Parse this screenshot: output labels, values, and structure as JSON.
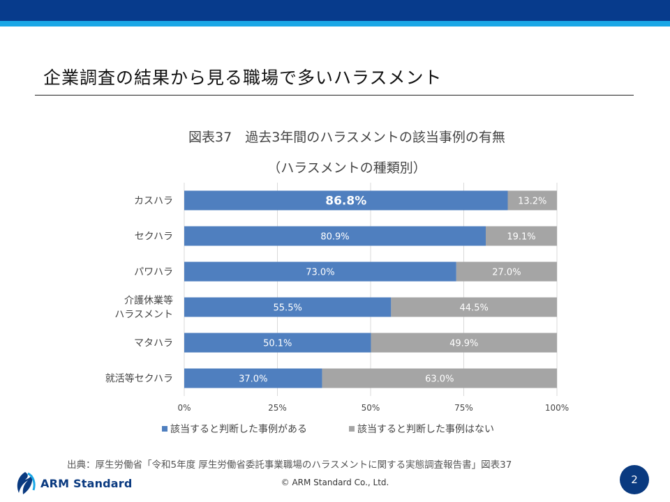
{
  "header": {
    "title": "企業調査の結果から見る職場で多いハラスメント"
  },
  "chart_data": {
    "type": "bar",
    "orientation": "horizontal",
    "stacked": true,
    "title_line1": "図表37　過去3年間のハラスメントの該当事例の有無",
    "title_line2": "（ハラスメントの種類別）",
    "categories": [
      "カスハラ",
      "セクハラ",
      "パワハラ",
      "介護休業等\nハラスメント",
      "マタハラ",
      "就活等セクハラ"
    ],
    "series": [
      {
        "name": "該当すると判断した事例がある",
        "values": [
          86.8,
          80.9,
          73.0,
          55.5,
          50.1,
          37.0
        ],
        "color": "#4f7fbf"
      },
      {
        "name": "該当すると判断した事例はない",
        "values": [
          13.2,
          19.1,
          27.0,
          44.5,
          49.9,
          63.0
        ],
        "color": "#a5a5a5"
      }
    ],
    "value_labels": [
      [
        "86.8%",
        "80.9%",
        "73.0%",
        "55.5%",
        "50.1%",
        "37.0%"
      ],
      [
        "13.2%",
        "19.1%",
        "27.0%",
        "44.5%",
        "49.9%",
        "63.0%"
      ]
    ],
    "highlight": {
      "series": 0,
      "index": 0
    },
    "xlim": [
      0,
      100
    ],
    "xticks": [
      "0%",
      "25%",
      "50%",
      "75%",
      "100%"
    ],
    "grid": true,
    "legend_position": "bottom"
  },
  "source": "出典：厚生労働省「令和5年度 厚生労働省委託事業職場のハラスメントに関する実態調査報告書」図表37",
  "footer": {
    "logo_text": "ARM Standard",
    "copyright": "© ARM Standard Co., Ltd.",
    "page_number": "2"
  }
}
